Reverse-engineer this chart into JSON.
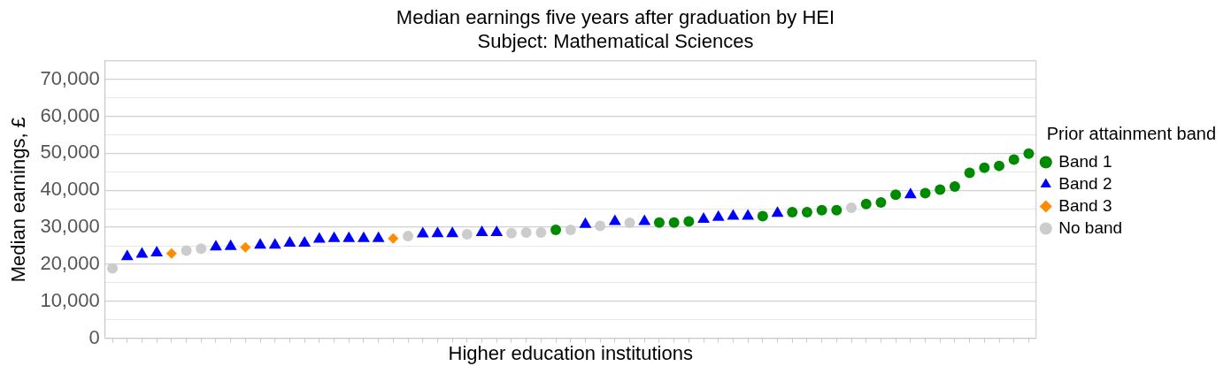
{
  "chart_data": {
    "type": "scatter",
    "title": "Median earnings five years after graduation by HEI",
    "subtitle": "Subject: Mathematical Sciences",
    "xlabel": "Higher education institutions",
    "ylabel": "Median earnings, £",
    "legend_title": "Prior attainment band",
    "legend": "right",
    "grid": "y",
    "tick_labels": "y",
    "categories": [
      null,
      null,
      null,
      null,
      null,
      null,
      null,
      null,
      null,
      null,
      null,
      null,
      null,
      null,
      null,
      null,
      null,
      null,
      null,
      null,
      null,
      null,
      null,
      null,
      null,
      null,
      null,
      null,
      null,
      null,
      null,
      null,
      null,
      null,
      null,
      null,
      null,
      null,
      null,
      null,
      null,
      null,
      null,
      null,
      null,
      null,
      null,
      null,
      null,
      null,
      null,
      null,
      null,
      null,
      null,
      null,
      null,
      null,
      null,
      null,
      null,
      null,
      null
    ],
    "ylim": [
      0,
      75000
    ],
    "yticks": [
      0,
      {
        "value": 5000,
        "label": null
      },
      {
        "value": 10000,
        "label": "10,000"
      },
      {
        "value": 15000,
        "label": null
      },
      {
        "value": 20000,
        "label": "20,000"
      },
      {
        "value": 25000,
        "label": null
      },
      {
        "value": 30000,
        "label": "30,000"
      },
      {
        "value": 35000,
        "label": null
      },
      {
        "value": 40000,
        "label": "40,000"
      },
      {
        "value": 45000,
        "label": null
      },
      {
        "value": 50000,
        "label": "50,000"
      },
      {
        "value": 55000,
        "label": null
      },
      {
        "value": 60000,
        "label": "60,000"
      },
      {
        "value": 65000,
        "label": null
      },
      {
        "value": 70000,
        "label": "70,000"
      },
      {
        "value": 75000,
        "label": null
      }
    ],
    "series": [
      {
        "name": "Band 1",
        "color": "#008a00",
        "marker": "circle",
        "values": [
          null,
          null,
          null,
          null,
          null,
          null,
          null,
          null,
          null,
          null,
          null,
          null,
          null,
          null,
          null,
          null,
          null,
          null,
          null,
          null,
          null,
          null,
          null,
          null,
          null,
          null,
          null,
          null,
          null,
          null,
          29300,
          null,
          null,
          null,
          null,
          null,
          null,
          31300,
          31300,
          31600,
          null,
          null,
          null,
          null,
          33000,
          null,
          34100,
          34100,
          34600,
          34600,
          null,
          36300,
          36700,
          38800,
          null,
          39200,
          40200,
          41000,
          44700,
          46100,
          46600,
          48300,
          49900
        ]
      },
      {
        "name": "Band 2",
        "color": "#0000ff",
        "marker": "triangle",
        "values": [
          null,
          22100,
          22700,
          23100,
          null,
          null,
          null,
          24700,
          24800,
          null,
          25200,
          25200,
          25700,
          25700,
          26800,
          27000,
          27000,
          27000,
          27000,
          null,
          null,
          28200,
          28300,
          28300,
          null,
          28600,
          28600,
          null,
          null,
          null,
          null,
          null,
          30800,
          null,
          31600,
          null,
          31600,
          null,
          null,
          null,
          32200,
          32700,
          33000,
          33000,
          null,
          33800,
          null,
          null,
          null,
          null,
          null,
          null,
          null,
          null,
          38800,
          null,
          null,
          null,
          null,
          null,
          null,
          null,
          null
        ]
      },
      {
        "name": "Band 3",
        "color": "#ff8c00",
        "marker": "diamond",
        "values": [
          null,
          null,
          null,
          null,
          22900,
          null,
          null,
          null,
          null,
          24600,
          null,
          null,
          null,
          null,
          null,
          null,
          null,
          null,
          null,
          27000,
          null,
          null,
          null,
          null,
          null,
          null,
          null,
          null,
          null,
          null,
          null,
          null,
          null,
          null,
          null,
          null,
          null,
          null,
          null,
          null,
          null,
          null,
          null,
          null,
          null,
          null,
          null,
          null,
          null,
          null,
          null,
          null,
          null,
          null,
          null,
          null,
          null,
          null,
          null,
          null,
          null,
          null,
          null
        ]
      },
      {
        "name": "No band",
        "color": "#cccccc",
        "marker": "circle",
        "values": [
          18900,
          null,
          null,
          null,
          null,
          23700,
          24200,
          null,
          null,
          null,
          null,
          null,
          null,
          null,
          null,
          null,
          null,
          null,
          null,
          null,
          27600,
          null,
          null,
          null,
          28100,
          null,
          null,
          28400,
          28600,
          28600,
          null,
          29300,
          null,
          30400,
          null,
          31200,
          null,
          null,
          null,
          null,
          null,
          null,
          null,
          null,
          null,
          null,
          null,
          null,
          null,
          null,
          35300,
          null,
          null,
          null,
          null,
          null,
          null,
          null,
          null,
          null,
          null,
          null,
          null
        ]
      }
    ]
  }
}
